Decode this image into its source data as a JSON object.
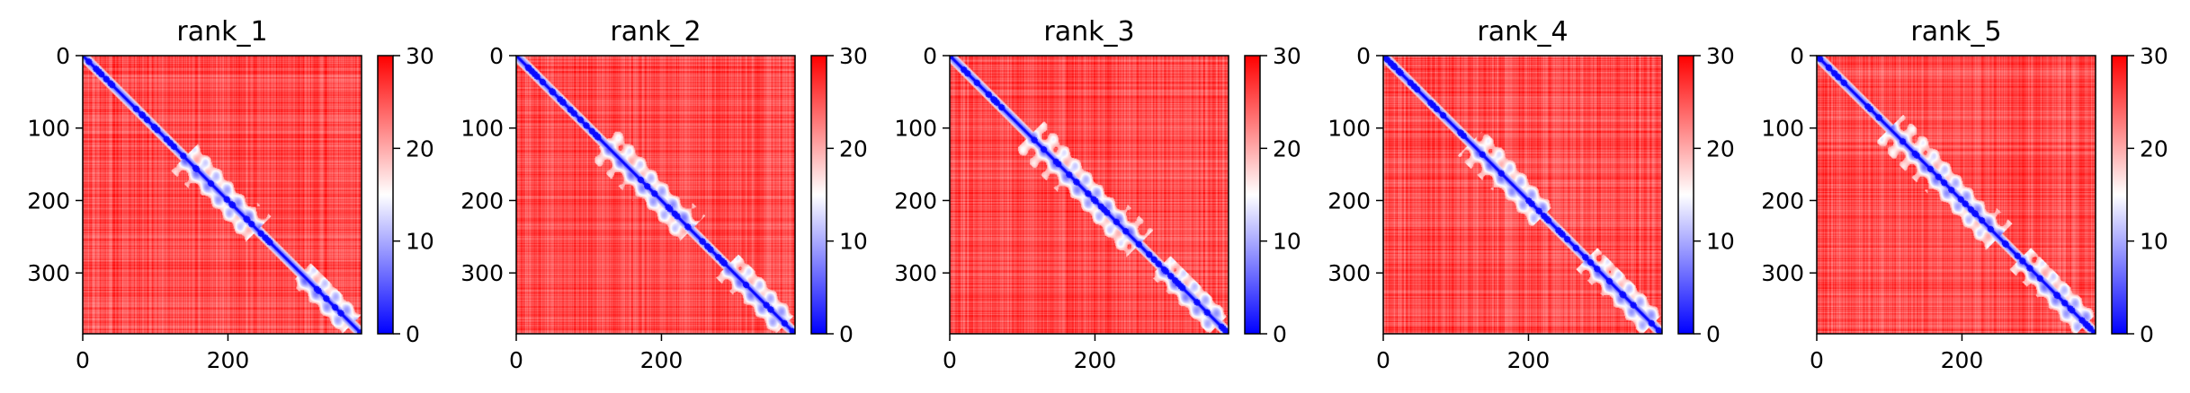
{
  "chart_data": [
    {
      "type": "heatmap",
      "title": "rank_1",
      "x_ticks": [
        0,
        200
      ],
      "y_ticks": [
        0,
        100,
        200,
        300
      ],
      "size": 384,
      "xlim": [
        0,
        384
      ],
      "ylim": [
        384,
        0
      ],
      "colorbar": {
        "ticks": [
          0,
          10,
          20,
          30
        ],
        "range": [
          0,
          30
        ],
        "colors": [
          "#0000ff",
          "#ffffff",
          "#ff0000"
        ]
      },
      "diagonal_features": [
        {
          "from": 140,
          "to": 240,
          "width": 38
        },
        {
          "from": 300,
          "to": 370,
          "width": 28
        }
      ]
    },
    {
      "type": "heatmap",
      "title": "rank_2",
      "x_ticks": [
        0,
        200
      ],
      "y_ticks": [
        0,
        100,
        200,
        300
      ],
      "size": 384,
      "xlim": [
        0,
        384
      ],
      "ylim": [
        384,
        0
      ],
      "colorbar": {
        "ticks": [
          0,
          10,
          20,
          30
        ],
        "range": [
          0,
          30
        ],
        "colors": [
          "#0000ff",
          "#ffffff",
          "#ff0000"
        ]
      },
      "diagonal_features": [
        {
          "from": 120,
          "to": 240,
          "width": 40
        },
        {
          "from": 290,
          "to": 370,
          "width": 32
        }
      ]
    },
    {
      "type": "heatmap",
      "title": "rank_3",
      "x_ticks": [
        0,
        200
      ],
      "y_ticks": [
        0,
        100,
        200,
        300
      ],
      "size": 384,
      "xlim": [
        0,
        384
      ],
      "ylim": [
        384,
        0
      ],
      "colorbar": {
        "ticks": [
          0,
          10,
          20,
          30
        ],
        "range": [
          0,
          30
        ],
        "colors": [
          "#0000ff",
          "#ffffff",
          "#ff0000"
        ]
      },
      "diagonal_features": [
        {
          "from": 110,
          "to": 260,
          "width": 40
        },
        {
          "from": 290,
          "to": 370,
          "width": 28
        }
      ]
    },
    {
      "type": "heatmap",
      "title": "rank_4",
      "x_ticks": [
        0,
        200
      ],
      "y_ticks": [
        0,
        100,
        200,
        300
      ],
      "size": 384,
      "xlim": [
        0,
        384
      ],
      "ylim": [
        384,
        0
      ],
      "colorbar": {
        "ticks": [
          0,
          10,
          20,
          30
        ],
        "range": [
          0,
          30
        ],
        "colors": [
          "#0000ff",
          "#ffffff",
          "#ff0000"
        ]
      },
      "diagonal_features": [
        {
          "from": 120,
          "to": 220,
          "width": 36
        },
        {
          "from": 280,
          "to": 370,
          "width": 30
        }
      ]
    },
    {
      "type": "heatmap",
      "title": "rank_5",
      "x_ticks": [
        0,
        200
      ],
      "y_ticks": [
        0,
        100,
        200,
        300
      ],
      "size": 384,
      "xlim": [
        0,
        384
      ],
      "ylim": [
        384,
        0
      ],
      "colorbar": {
        "ticks": [
          0,
          10,
          20,
          30
        ],
        "range": [
          0,
          30
        ],
        "colors": [
          "#0000ff",
          "#ffffff",
          "#ff0000"
        ]
      },
      "diagonal_features": [
        {
          "from": 100,
          "to": 250,
          "width": 38
        },
        {
          "from": 280,
          "to": 370,
          "width": 30
        }
      ]
    }
  ]
}
